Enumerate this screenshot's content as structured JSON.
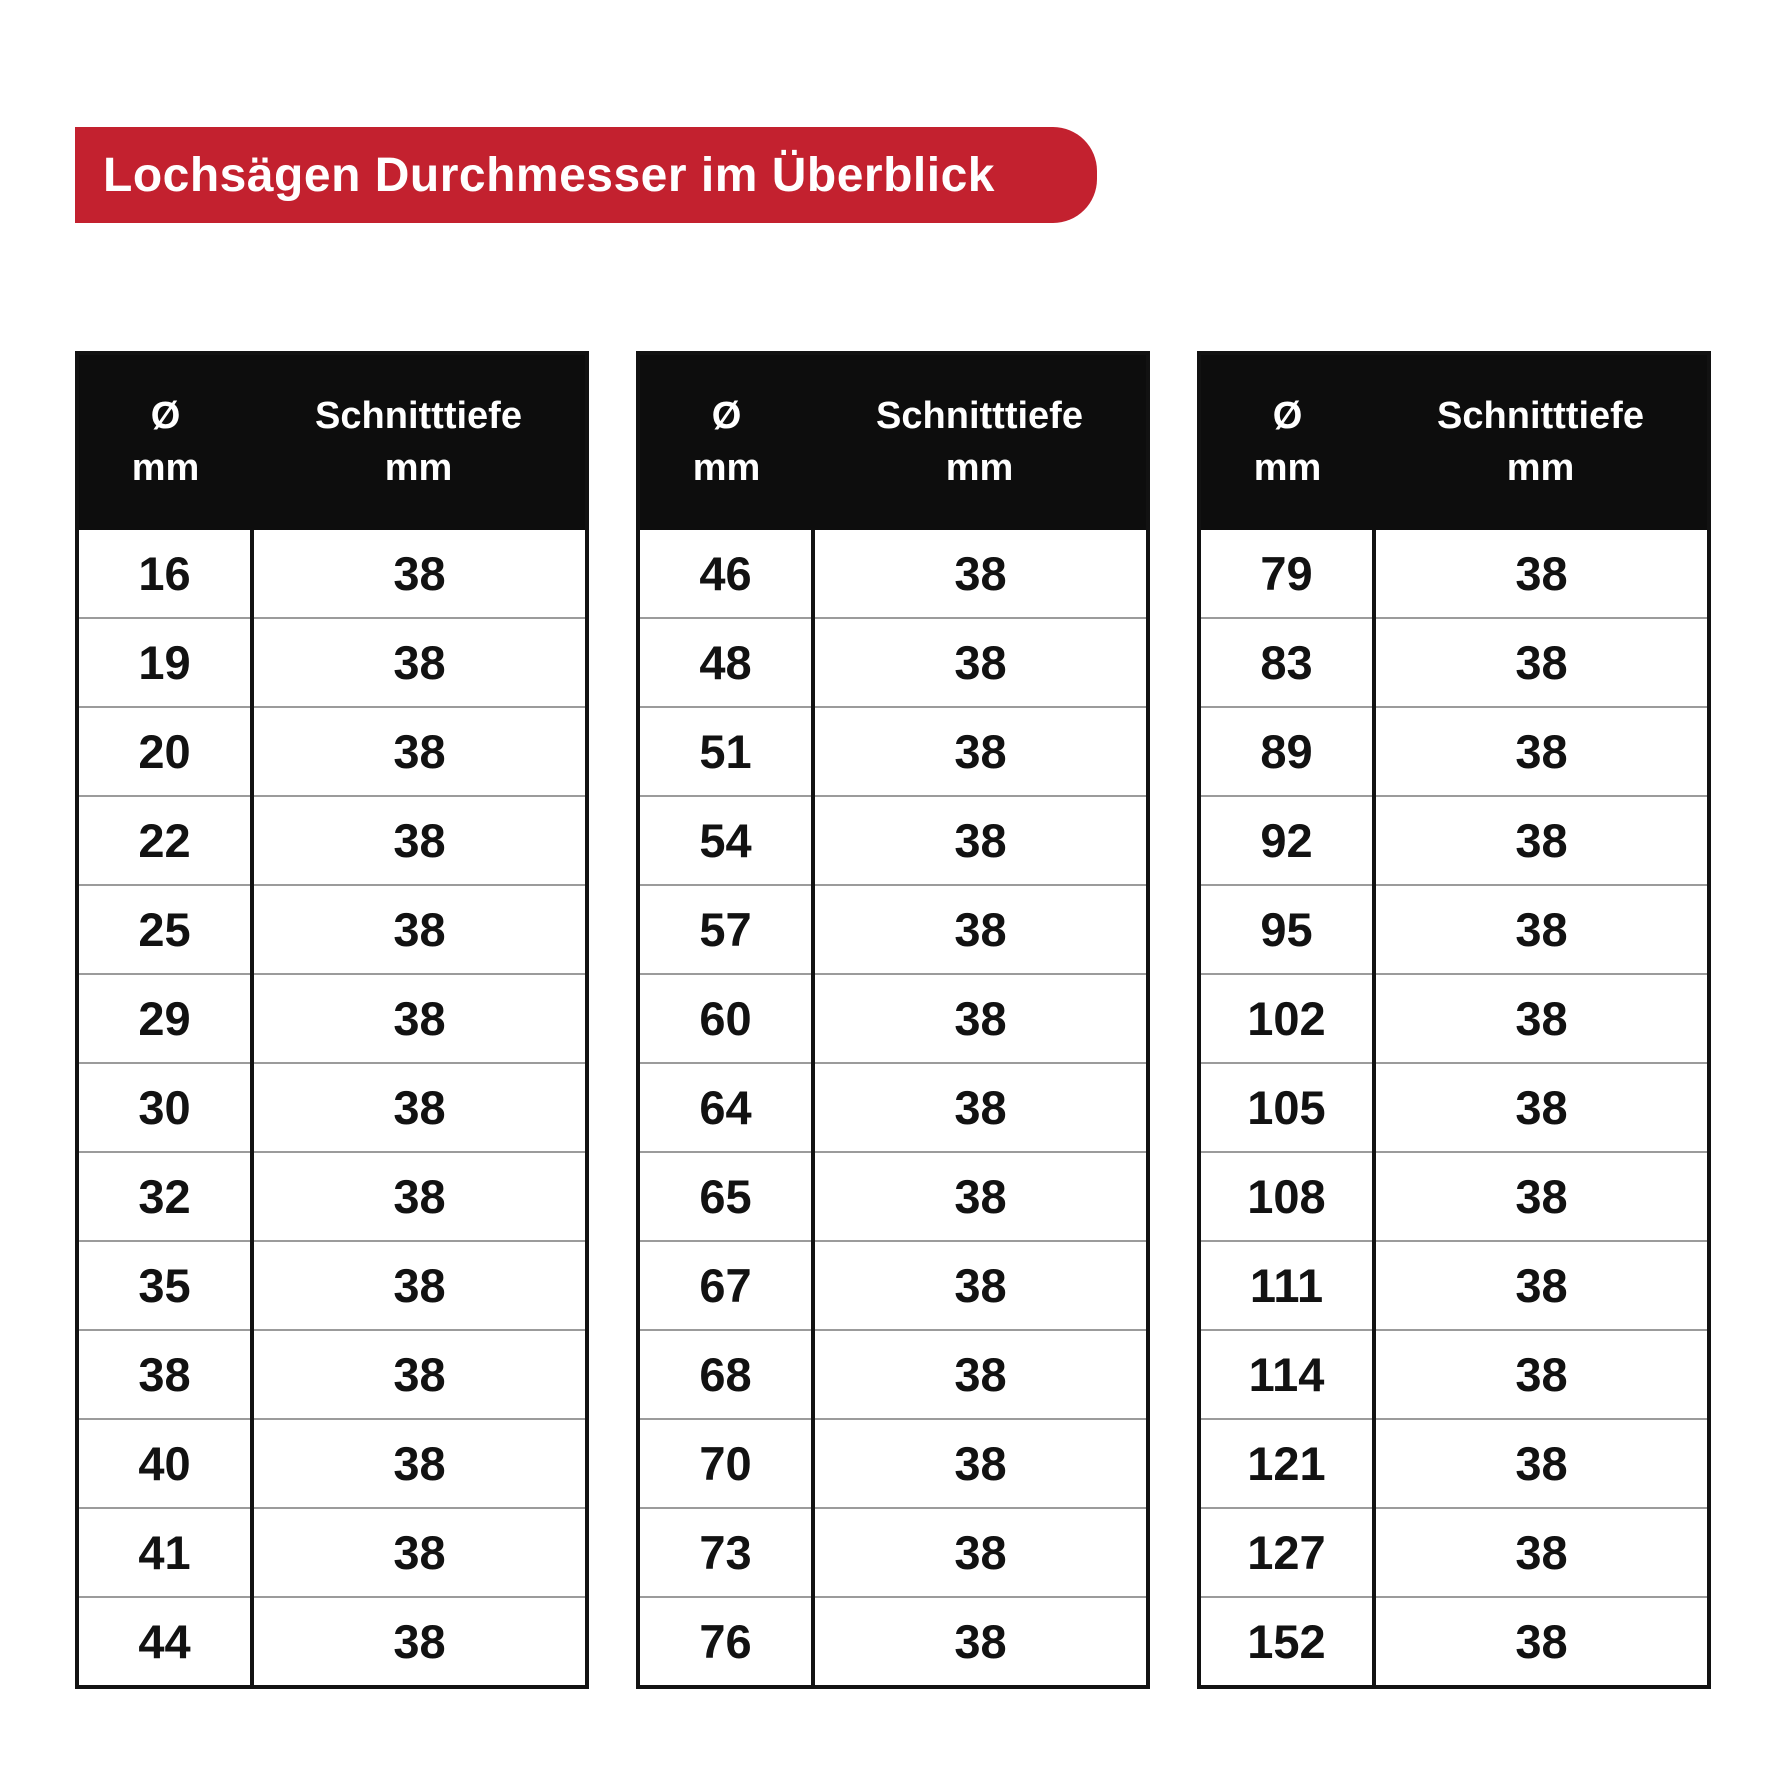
{
  "title": "Lochsägen Durchmesser im Überblick",
  "colors": {
    "accent_red": "#C3212F",
    "header_black": "#0D0D0D",
    "text_white": "#FFFFFF",
    "row_divider_gray": "#9B9B9B"
  },
  "column_headers": {
    "diameter": "Ø\nmm",
    "depth": "Schnitttiefe\nmm"
  },
  "tables": [
    {
      "rows": [
        {
          "d": "16",
          "s": "38"
        },
        {
          "d": "19",
          "s": "38"
        },
        {
          "d": "20",
          "s": "38"
        },
        {
          "d": "22",
          "s": "38"
        },
        {
          "d": "25",
          "s": "38"
        },
        {
          "d": "29",
          "s": "38"
        },
        {
          "d": "30",
          "s": "38"
        },
        {
          "d": "32",
          "s": "38"
        },
        {
          "d": "35",
          "s": "38"
        },
        {
          "d": "38",
          "s": "38"
        },
        {
          "d": "40",
          "s": "38"
        },
        {
          "d": "41",
          "s": "38"
        },
        {
          "d": "44",
          "s": "38"
        }
      ]
    },
    {
      "rows": [
        {
          "d": "46",
          "s": "38"
        },
        {
          "d": "48",
          "s": "38"
        },
        {
          "d": "51",
          "s": "38"
        },
        {
          "d": "54",
          "s": "38"
        },
        {
          "d": "57",
          "s": "38"
        },
        {
          "d": "60",
          "s": "38"
        },
        {
          "d": "64",
          "s": "38"
        },
        {
          "d": "65",
          "s": "38"
        },
        {
          "d": "67",
          "s": "38"
        },
        {
          "d": "68",
          "s": "38"
        },
        {
          "d": "70",
          "s": "38"
        },
        {
          "d": "73",
          "s": "38"
        },
        {
          "d": "76",
          "s": "38"
        }
      ]
    },
    {
      "rows": [
        {
          "d": "79",
          "s": "38"
        },
        {
          "d": "83",
          "s": "38"
        },
        {
          "d": "89",
          "s": "38"
        },
        {
          "d": "92",
          "s": "38"
        },
        {
          "d": "95",
          "s": "38"
        },
        {
          "d": "102",
          "s": "38"
        },
        {
          "d": "105",
          "s": "38"
        },
        {
          "d": "108",
          "s": "38"
        },
        {
          "d": "111",
          "s": "38"
        },
        {
          "d": "114",
          "s": "38"
        },
        {
          "d": "121",
          "s": "38"
        },
        {
          "d": "127",
          "s": "38"
        },
        {
          "d": "152",
          "s": "38"
        }
      ]
    }
  ]
}
